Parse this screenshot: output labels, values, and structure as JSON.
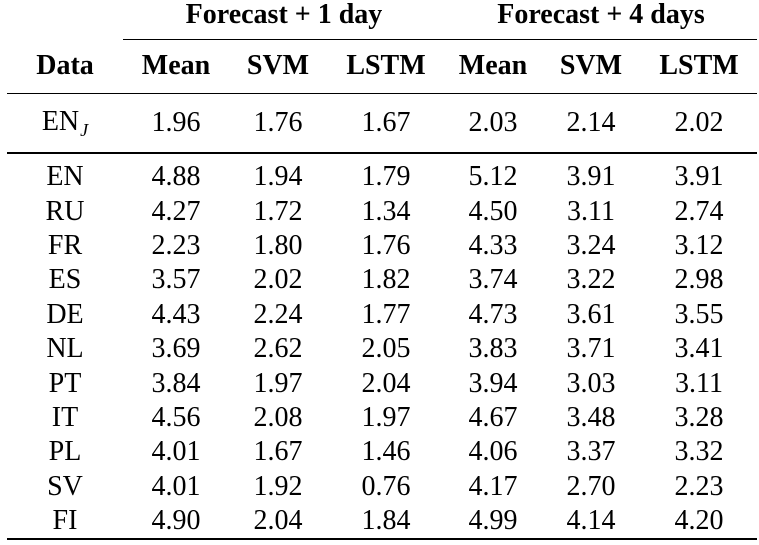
{
  "groups": {
    "day1": "Forecast + 1 day",
    "day4": "Forecast + 4 days"
  },
  "columns": {
    "data": "Data",
    "mean1": "Mean",
    "svm1": "SVM",
    "lstm1": "LSTM",
    "mean4": "Mean",
    "svm4": "SVM",
    "lstm4": "LSTM"
  },
  "summary_row": {
    "label": "EN",
    "label_subscript": "J",
    "values": [
      "1.96",
      "1.76",
      "1.67",
      "2.03",
      "2.14",
      "2.02"
    ]
  },
  "rows": [
    {
      "label": "EN",
      "values": [
        "4.88",
        "1.94",
        "1.79",
        "5.12",
        "3.91",
        "3.91"
      ]
    },
    {
      "label": "RU",
      "values": [
        "4.27",
        "1.72",
        "1.34",
        "4.50",
        "3.11",
        "2.74"
      ]
    },
    {
      "label": "FR",
      "values": [
        "2.23",
        "1.80",
        "1.76",
        "4.33",
        "3.24",
        "3.12"
      ]
    },
    {
      "label": "ES",
      "values": [
        "3.57",
        "2.02",
        "1.82",
        "3.74",
        "3.22",
        "2.98"
      ]
    },
    {
      "label": "DE",
      "values": [
        "4.43",
        "2.24",
        "1.77",
        "4.73",
        "3.61",
        "3.55"
      ]
    },
    {
      "label": "NL",
      "values": [
        "3.69",
        "2.62",
        "2.05",
        "3.83",
        "3.71",
        "3.41"
      ]
    },
    {
      "label": "PT",
      "values": [
        "3.84",
        "1.97",
        "2.04",
        "3.94",
        "3.03",
        "3.11"
      ]
    },
    {
      "label": "IT",
      "values": [
        "4.56",
        "2.08",
        "1.97",
        "4.67",
        "3.48",
        "3.28"
      ]
    },
    {
      "label": "PL",
      "values": [
        "4.01",
        "1.67",
        "1.46",
        "4.06",
        "3.37",
        "3.32"
      ]
    },
    {
      "label": "SV",
      "values": [
        "4.01",
        "1.92",
        "0.76",
        "4.17",
        "2.70",
        "2.23"
      ]
    },
    {
      "label": "FI",
      "values": [
        "4.90",
        "2.04",
        "1.84",
        "4.99",
        "4.14",
        "4.20"
      ]
    }
  ]
}
